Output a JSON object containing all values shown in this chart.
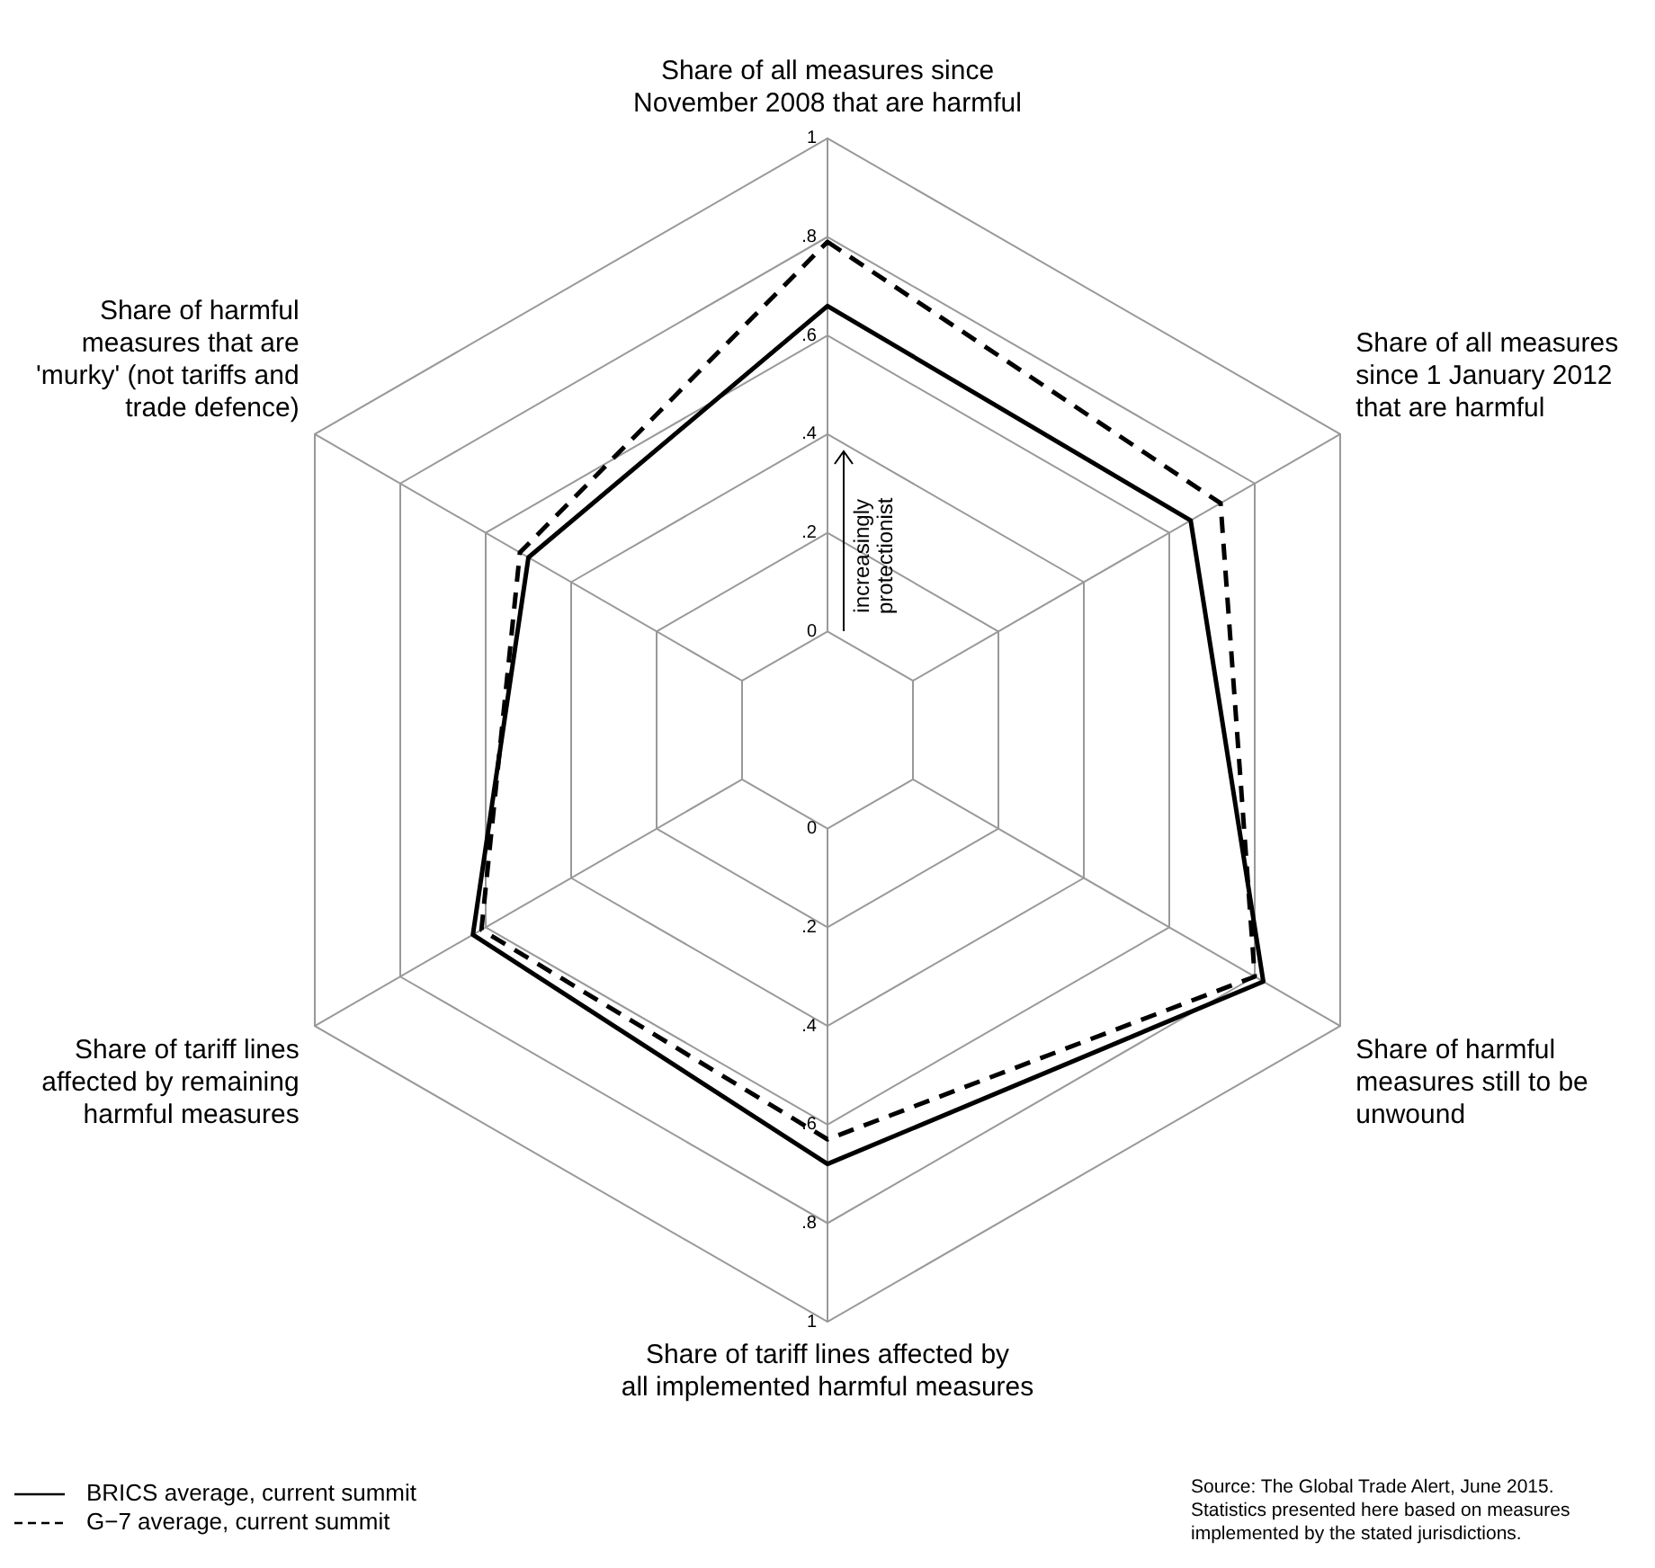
{
  "chart_data": {
    "type": "radar",
    "categories": [
      "Share of all measures since\nNovember 2008 that are harmful",
      "Share of all measures\nsince 1 January 2012\nthat are harmful",
      "Share of harmful\nmeasures still to be\nunwound",
      "Share of tariff lines affected by\nall implemented harmful measures",
      "Share of tariff lines\naffected by remaining\nharmful measures",
      "Share of harmful\nmeasures that are\n'murky' (not tariffs and\ntrade defence)"
    ],
    "series": [
      {
        "name": "BRICS average, current summit",
        "color": "#000000",
        "line_style": "solid",
        "values": [
          0.66,
          0.65,
          0.82,
          0.68,
          0.63,
          0.5
        ]
      },
      {
        "name": "G−7 average, current summit",
        "color": "#000000",
        "line_style": "dashed",
        "values": [
          0.79,
          0.72,
          0.8,
          0.63,
          0.61,
          0.52
        ]
      }
    ],
    "ylim": [
      -0.2,
      1
    ],
    "yticks": [
      {
        "value": 0,
        "label": "0"
      },
      {
        "value": 0.2,
        "label": ".2"
      },
      {
        "value": 0.4,
        "label": ".4"
      },
      {
        "value": 0.6,
        "label": ".6"
      },
      {
        "value": 0.8,
        "label": ".8"
      },
      {
        "value": 1,
        "label": "1"
      }
    ],
    "grid": true,
    "legend": "bottom left",
    "marker": "none",
    "annotations": [
      "increasingly\nprotectionist",
      "Source: The Global Trade Alert, June 2015.\nStatistics presented here based on measures\nimplemented by the stated jurisdictions."
    ]
  }
}
